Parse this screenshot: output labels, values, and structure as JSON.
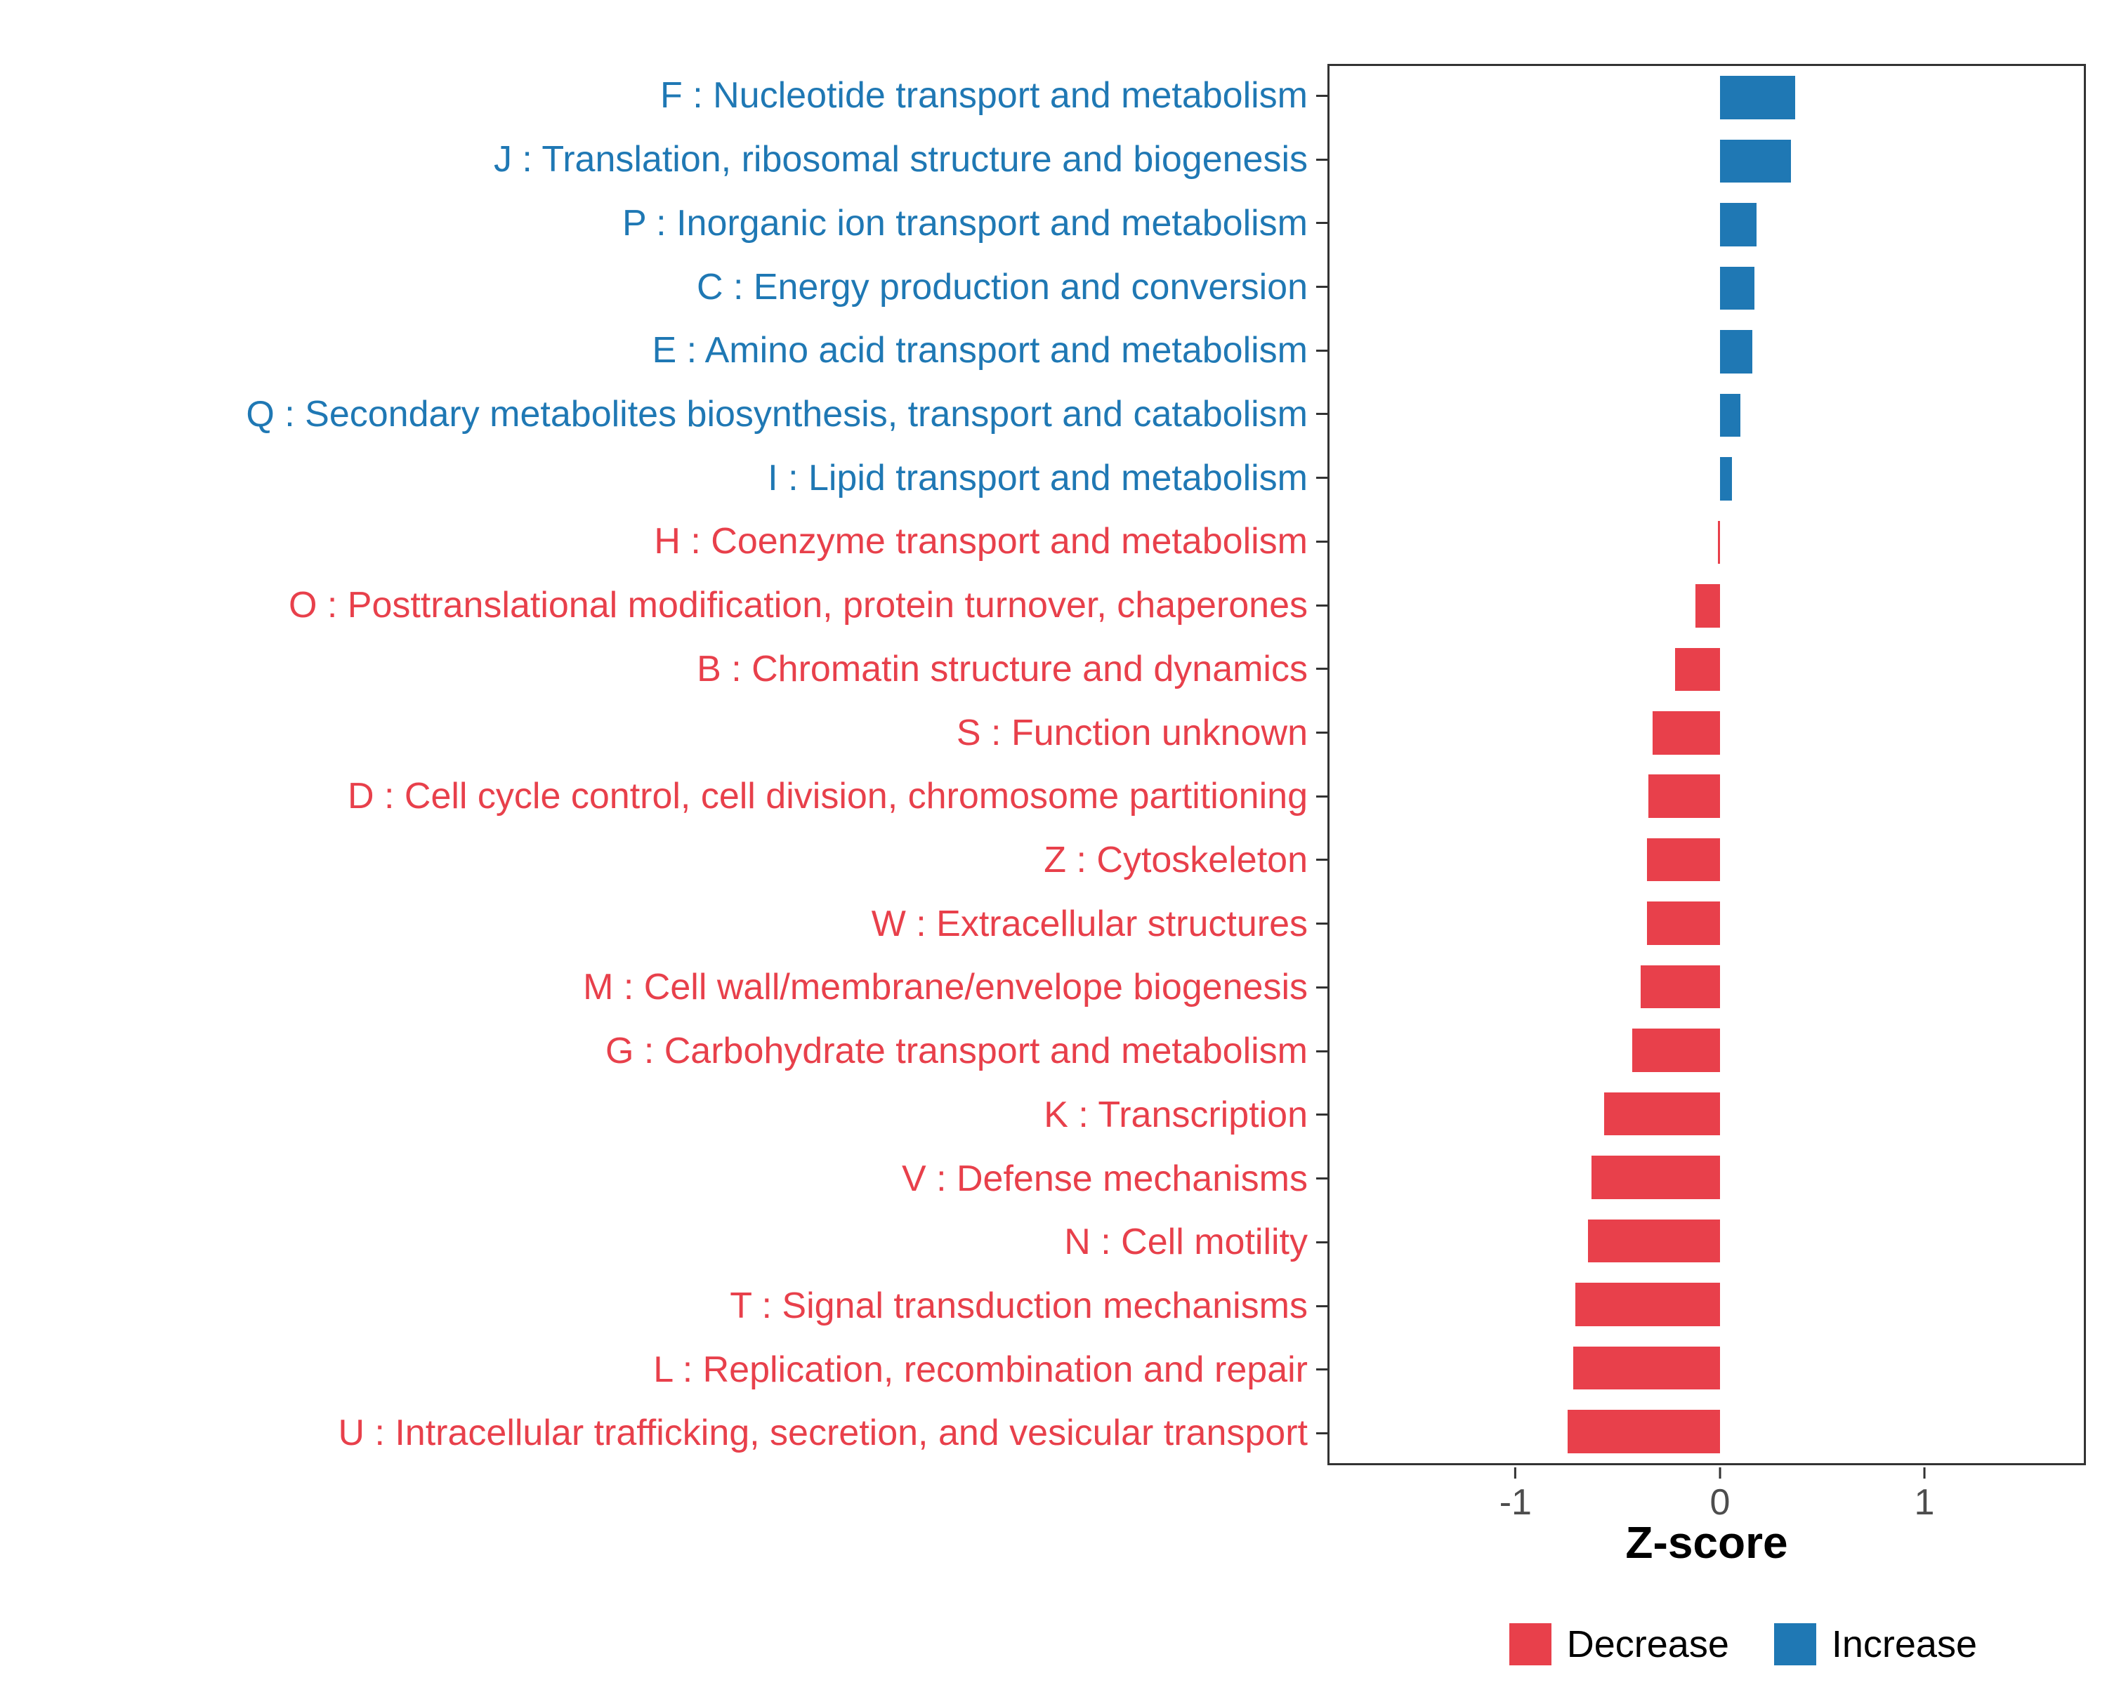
{
  "chart_data": {
    "type": "bar",
    "orientation": "horizontal",
    "title": "",
    "xlabel": "Z-score",
    "ylabel": "",
    "x_ticks": [
      -1,
      0,
      1
    ],
    "xlim": [
      -1.92,
      1.79
    ],
    "grid": false,
    "legend_position": "bottom-right",
    "legend": [
      {
        "label": "Decrease",
        "group": "Decrease",
        "color": "#e8404b"
      },
      {
        "label": "Increase",
        "group": "Increase",
        "color": "#1f78b4"
      }
    ],
    "bars": [
      {
        "label": "F : Nucleotide transport and metabolism",
        "value": 0.37,
        "group": "Increase"
      },
      {
        "label": "J : Translation, ribosomal structure and biogenesis",
        "value": 0.35,
        "group": "Increase"
      },
      {
        "label": "P : Inorganic ion transport and metabolism",
        "value": 0.18,
        "group": "Increase"
      },
      {
        "label": "C : Energy production and conversion",
        "value": 0.17,
        "group": "Increase"
      },
      {
        "label": "E : Amino acid transport and metabolism",
        "value": 0.16,
        "group": "Increase"
      },
      {
        "label": "Q : Secondary metabolites biosynthesis, transport and catabolism",
        "value": 0.1,
        "group": "Increase"
      },
      {
        "label": "I : Lipid transport and metabolism",
        "value": 0.06,
        "group": "Increase"
      },
      {
        "label": "H : Coenzyme transport and metabolism",
        "value": -0.01,
        "group": "Decrease"
      },
      {
        "label": "O : Posttranslational modification, protein turnover, chaperones",
        "value": -0.12,
        "group": "Decrease"
      },
      {
        "label": "B : Chromatin structure and dynamics",
        "value": -0.22,
        "group": "Decrease"
      },
      {
        "label": "S : Function unknown",
        "value": -0.33,
        "group": "Decrease"
      },
      {
        "label": "D : Cell cycle control, cell division, chromosome partitioning",
        "value": -0.35,
        "group": "Decrease"
      },
      {
        "label": "Z : Cytoskeleton",
        "value": -0.36,
        "group": "Decrease"
      },
      {
        "label": "W : Extracellular structures",
        "value": -0.36,
        "group": "Decrease"
      },
      {
        "label": "M : Cell wall/membrane/envelope biogenesis",
        "value": -0.39,
        "group": "Decrease"
      },
      {
        "label": "G : Carbohydrate transport and metabolism",
        "value": -0.43,
        "group": "Decrease"
      },
      {
        "label": "K : Transcription",
        "value": -0.57,
        "group": "Decrease"
      },
      {
        "label": "V : Defense mechanisms",
        "value": -0.63,
        "group": "Decrease"
      },
      {
        "label": "N : Cell motility",
        "value": -0.65,
        "group": "Decrease"
      },
      {
        "label": "T : Signal transduction mechanisms",
        "value": -0.71,
        "group": "Decrease"
      },
      {
        "label": "L : Replication, recombination and repair",
        "value": -0.72,
        "group": "Decrease"
      },
      {
        "label": "U : Intracellular trafficking, secretion, and vesicular transport",
        "value": -0.75,
        "group": "Decrease"
      }
    ]
  },
  "colors": {
    "increase": "#1f78b4",
    "decrease": "#e8404b",
    "axis_text": "#4d4d4d",
    "axis_line": "#333333",
    "panel_border": "#333333",
    "background": "#ffffff",
    "title_text": "#000000"
  }
}
